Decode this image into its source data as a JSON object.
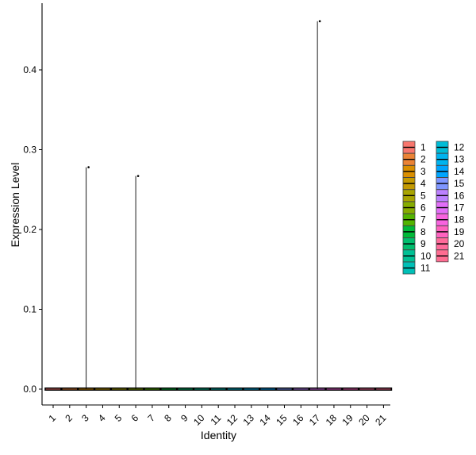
{
  "chart_data": {
    "type": "violin",
    "xlabel": "Identity",
    "ylabel": "Expression Level",
    "categories": [
      "1",
      "2",
      "3",
      "4",
      "5",
      "6",
      "7",
      "8",
      "9",
      "10",
      "11",
      "12",
      "13",
      "14",
      "15",
      "16",
      "17",
      "18",
      "19",
      "20",
      "21"
    ],
    "yticks": [
      "0.0",
      "0.1",
      "0.2",
      "0.3",
      "0.4"
    ],
    "ylim": [
      -0.02,
      0.485
    ],
    "max_values": [
      0,
      0,
      0.278,
      0,
      0,
      0.267,
      0,
      0,
      0,
      0,
      0,
      0,
      0,
      0,
      0,
      0,
      0.461,
      0,
      0,
      0,
      0
    ],
    "outlier_points": [
      {
        "category": "3",
        "value": 0.278
      },
      {
        "category": "6",
        "value": 0.267
      },
      {
        "category": "17",
        "value": 0.461
      }
    ],
    "grid": false,
    "legend_position": "right",
    "legend_columns": 2,
    "colors": [
      "#F8766D",
      "#EB8335",
      "#DA8F00",
      "#C49A00",
      "#A9A400",
      "#86AC00",
      "#53B400",
      "#00BA38",
      "#00BE6D",
      "#00C094",
      "#00C0B7",
      "#00BCD6",
      "#00B4EF",
      "#00A5FF",
      "#7F96FF",
      "#BC81FF",
      "#E26EF7",
      "#F863DF",
      "#FF62BF",
      "#FF6A9A",
      "#FF6C91"
    ]
  }
}
